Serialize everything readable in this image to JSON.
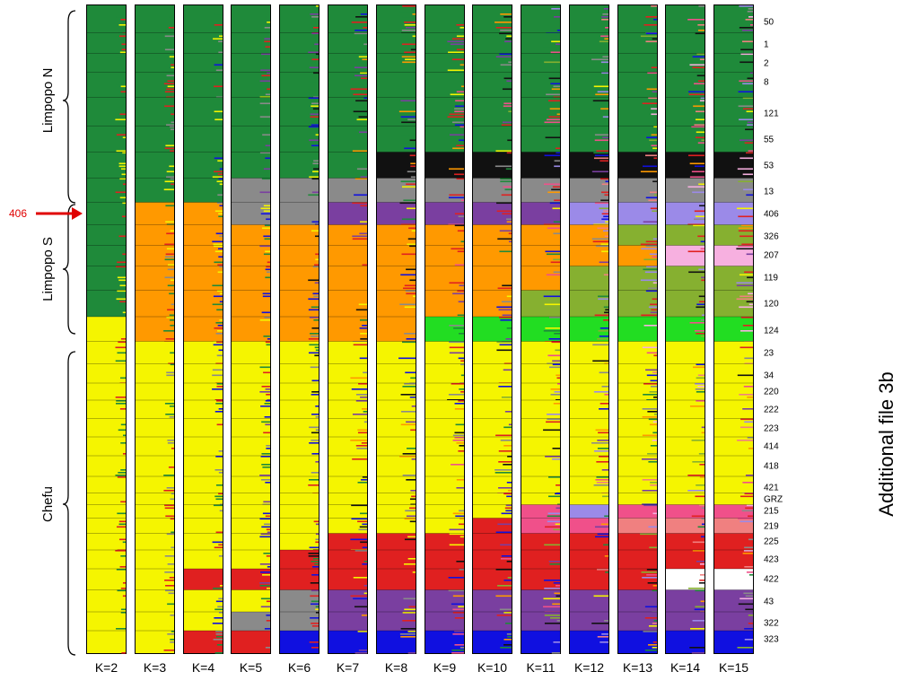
{
  "figure": {
    "side_title": "Additional file 3b",
    "highlight": {
      "label": "406",
      "color": "#e00000"
    }
  },
  "chart_data": {
    "type": "structure_barplot",
    "description_of_panels": "Admixture proportions per individual for K clusters",
    "k_values": [
      "K=2",
      "K=3",
      "K=4",
      "K=5",
      "K=6",
      "K=7",
      "K=8",
      "K=9",
      "K=10",
      "K=11",
      "K=12",
      "K=13",
      "K=14",
      "K=15"
    ],
    "groups": [
      {
        "name": "Limpopo N",
        "populations": [
          "50",
          "1",
          "2",
          "8",
          "121",
          "55",
          "53",
          "13"
        ]
      },
      {
        "name": "Limpopo S",
        "populations": [
          "406",
          "326",
          "207",
          "119",
          "120",
          "124"
        ]
      },
      {
        "name": "Chefu",
        "populations": [
          "23",
          "34",
          "220",
          "222",
          "223",
          "414",
          "418",
          "421",
          "GRZ",
          "215",
          "219",
          "225",
          "423",
          "422",
          "43",
          "322",
          "323"
        ]
      }
    ],
    "populations": [
      "50",
      "1",
      "2",
      "8",
      "121",
      "55",
      "53",
      "13",
      "406",
      "326",
      "207",
      "119",
      "120",
      "124",
      "23",
      "34",
      "220",
      "222",
      "223",
      "414",
      "418",
      "421",
      "GRZ",
      "215",
      "219",
      "225",
      "423",
      "422",
      "43",
      "322",
      "323"
    ],
    "cluster_colors": {
      "green": "#1f8a3a",
      "yellow": "#f5f500",
      "orange": "#ff9900",
      "red": "#e02020",
      "gray": "#8a8a8a",
      "blue": "#1010e0",
      "purple": "#7a3fa0",
      "black": "#111111",
      "lightgreen": "#22dd22",
      "olive": "#86b030",
      "pink": "#f0508a",
      "lavender": "#9b8ae8",
      "salmon": "#f08080",
      "lightpink": "#f7b0e0",
      "white": "#ffffff"
    }
  }
}
